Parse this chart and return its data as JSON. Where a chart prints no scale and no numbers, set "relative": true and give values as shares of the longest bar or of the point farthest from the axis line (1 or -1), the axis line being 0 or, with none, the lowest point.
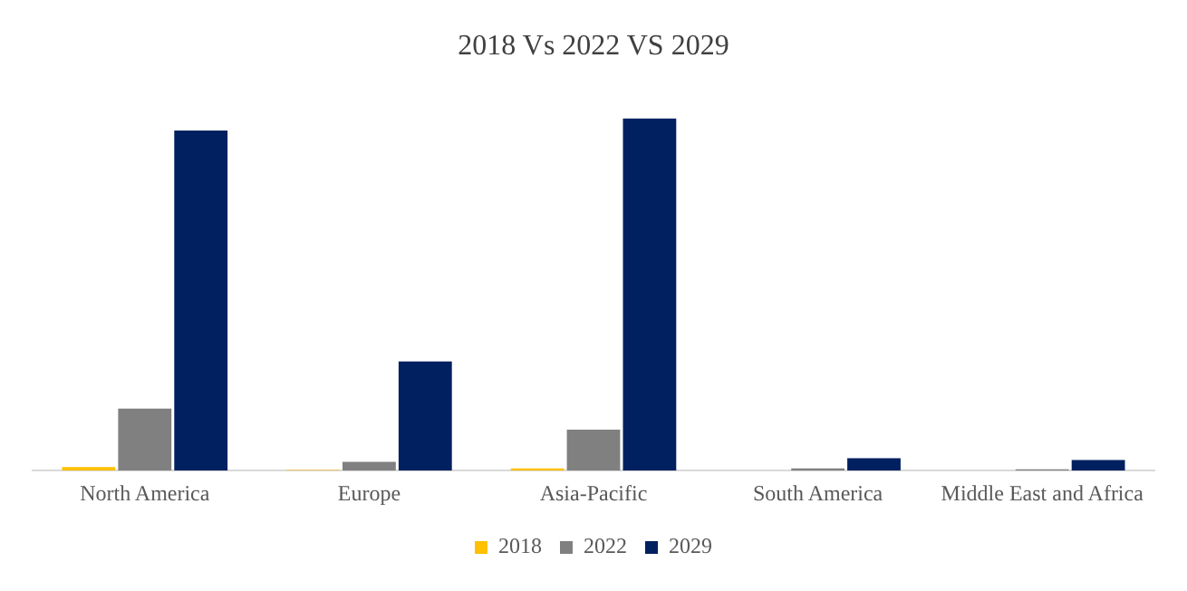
{
  "chart_data": {
    "type": "bar",
    "title": "2018 Vs 2022 VS 2029",
    "relative": true,
    "categories": [
      "North America",
      "Europe",
      "Asia-Pacific",
      "South America",
      "Middle East and Africa"
    ],
    "series": [
      {
        "name": "2018",
        "color": "#ffc000",
        "values": [
          0.01,
          0.002,
          0.006,
          null,
          null
        ]
      },
      {
        "name": "2022",
        "color": "#808080",
        "values": [
          0.176,
          0.025,
          0.116,
          0.006,
          0.004
        ]
      },
      {
        "name": "2029",
        "color": "#002060",
        "values": [
          0.965,
          0.31,
          1,
          0.035,
          0.03
        ]
      }
    ],
    "legend": "bottom",
    "grid": false
  }
}
